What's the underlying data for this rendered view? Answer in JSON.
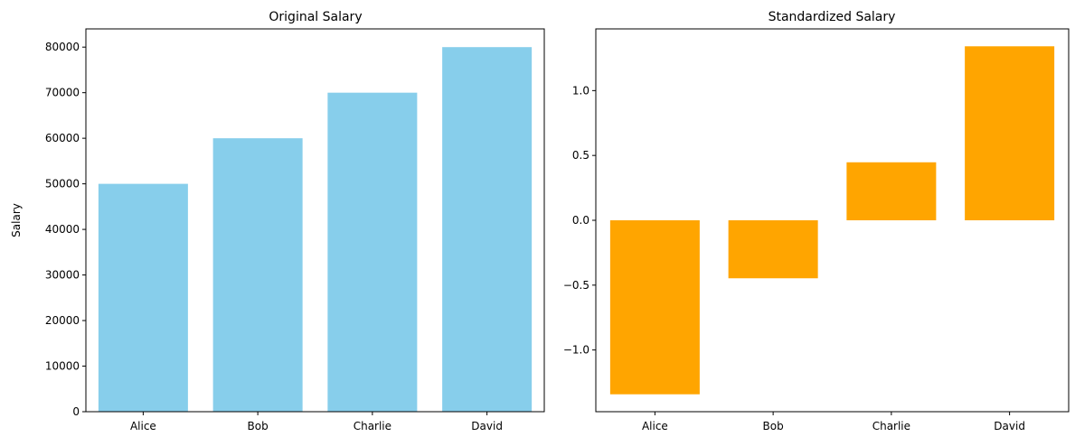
{
  "chart_data": [
    {
      "type": "bar",
      "title": "Original Salary",
      "xlabel": "",
      "ylabel": "Salary",
      "categories": [
        "Alice",
        "Bob",
        "Charlie",
        "David"
      ],
      "values": [
        50000,
        60000,
        70000,
        80000
      ],
      "ylim": [
        0,
        84000
      ],
      "yticks": [
        0,
        10000,
        20000,
        30000,
        40000,
        50000,
        60000,
        70000,
        80000
      ],
      "ytick_labels": [
        "0",
        "10000",
        "20000",
        "30000",
        "40000",
        "50000",
        "60000",
        "70000",
        "80000"
      ],
      "color": "#87ceeb",
      "grid": false,
      "legend": "none"
    },
    {
      "type": "bar",
      "title": "Standardized Salary",
      "xlabel": "",
      "ylabel": "",
      "categories": [
        "Alice",
        "Bob",
        "Charlie",
        "David"
      ],
      "values": [
        -1.3416,
        -0.4472,
        0.4472,
        1.3416
      ],
      "ylim": [
        -1.4758,
        1.4758
      ],
      "yticks": [
        -1.0,
        -0.5,
        0.0,
        0.5,
        1.0
      ],
      "ytick_labels": [
        "−1.0",
        "−0.5",
        "0.0",
        "0.5",
        "1.0"
      ],
      "color": "#ffa500",
      "grid": false,
      "legend": "none"
    }
  ]
}
